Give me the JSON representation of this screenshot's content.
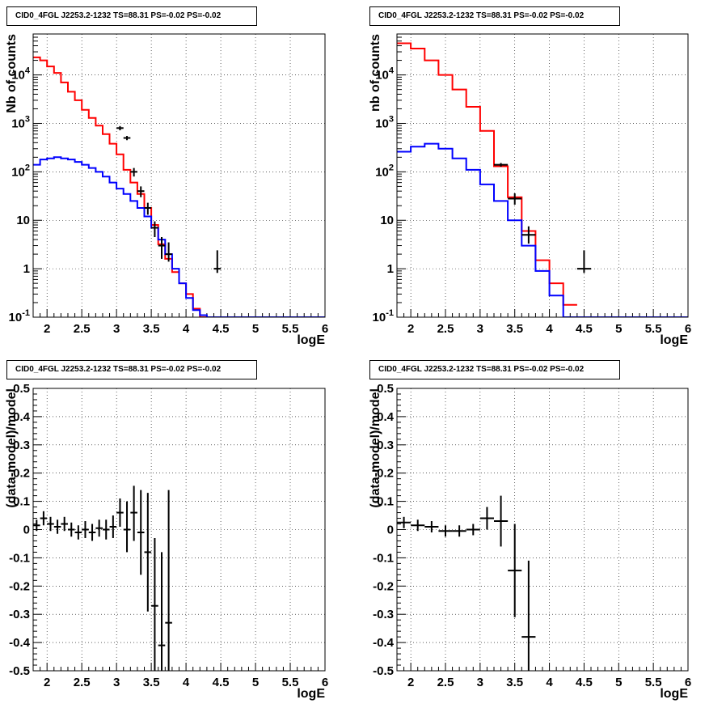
{
  "chart_data": [
    {
      "type": "histogram",
      "panel": "counts-fine",
      "title": "CID0_4FGL J2253.2-1232 TS=88.31 PS=-0.02 PS=-0.02",
      "xlabel": "logE",
      "ylabel": "Nb of counts",
      "xlim": [
        1.8,
        6.0
      ],
      "ylim": [
        0.1,
        70000
      ],
      "yscale": "log",
      "xticks": [
        "2",
        "2.5",
        "3",
        "3.5",
        "4",
        "4.5",
        "5",
        "5.5",
        "6"
      ],
      "yticks": [
        "10^-1",
        "1",
        "10",
        "10^2",
        "10^3",
        "10^4"
      ],
      "grid": true,
      "bin_width": 0.1,
      "series": [
        {
          "color": "#ff0000",
          "style": "step",
          "x": [
            1.85,
            1.95,
            2.05,
            2.15,
            2.25,
            2.35,
            2.45,
            2.55,
            2.65,
            2.75,
            2.85,
            2.95,
            3.05,
            3.15,
            3.25,
            3.35,
            3.45,
            3.55,
            3.65,
            3.75,
            3.85,
            3.95,
            4.05,
            4.15,
            4.25,
            4.35
          ],
          "values": [
            23000,
            20000,
            15000,
            11000,
            7000,
            4500,
            3000,
            1900,
            1300,
            900,
            600,
            380,
            230,
            110,
            60,
            35,
            18,
            8,
            3.2,
            1.6,
            0.85,
            0.5,
            0.3,
            0.15,
            0.1,
            0.1
          ]
        },
        {
          "color": "#0000ff",
          "style": "step",
          "x": [
            1.85,
            1.95,
            2.05,
            2.15,
            2.25,
            2.35,
            2.45,
            2.55,
            2.65,
            2.75,
            2.85,
            2.95,
            3.05,
            3.15,
            3.25,
            3.35,
            3.45,
            3.55,
            3.65,
            3.75,
            3.85,
            3.95,
            4.05,
            4.15,
            4.25,
            4.35,
            4.45,
            4.55,
            4.65,
            4.75,
            4.85,
            4.95,
            5.05,
            5.15,
            5.25,
            5.35,
            5.45,
            5.55,
            5.65,
            5.75,
            5.85,
            5.95
          ],
          "values": [
            140,
            180,
            190,
            200,
            190,
            180,
            160,
            140,
            120,
            100,
            80,
            60,
            45,
            35,
            25,
            18,
            12,
            7,
            4,
            2,
            1,
            0.5,
            0.25,
            0.14,
            0.11,
            0.1,
            0.1,
            0.1,
            0.1,
            0.1,
            0.1,
            0.1,
            0.1,
            0.1,
            0.1,
            0.1,
            0.1,
            0.1,
            0.1,
            0.1,
            0.1,
            0.1
          ]
        },
        {
          "color": "#000000",
          "style": "errorbar",
          "x": [
            3.05,
            3.15,
            3.25,
            3.35,
            3.45,
            3.55,
            3.65,
            3.75,
            4.45
          ],
          "values": [
            800,
            500,
            100,
            40,
            18,
            7,
            3,
            2,
            1
          ],
          "err_low": [
            720,
            450,
            80,
            30,
            13,
            4.5,
            1.6,
            1.4,
            0.82
          ],
          "err_high": [
            880,
            550,
            120,
            50,
            23,
            9.5,
            4.5,
            3.5,
            2.4
          ]
        }
      ]
    },
    {
      "type": "histogram",
      "panel": "counts-coarse",
      "title": "CID0_4FGL J2253.2-1232 TS=88.31 PS=-0.02 PS=-0.02",
      "xlabel": "logE",
      "ylabel": "nb of counts",
      "xlim": [
        1.8,
        6.0
      ],
      "ylim": [
        0.1,
        70000
      ],
      "yscale": "log",
      "xticks": [
        "2",
        "2.5",
        "3",
        "3.5",
        "4",
        "4.5",
        "5",
        "5.5",
        "6"
      ],
      "yticks": [
        "10^-1",
        "1",
        "10",
        "10^2",
        "10^3",
        "10^4"
      ],
      "grid": true,
      "bin_width": 0.2,
      "series": [
        {
          "color": "#ff0000",
          "style": "step",
          "x": [
            1.9,
            2.1,
            2.3,
            2.5,
            2.7,
            2.9,
            3.1,
            3.3,
            3.5,
            3.7,
            3.9,
            4.1,
            4.3
          ],
          "values": [
            45000,
            35000,
            20000,
            10000,
            5000,
            2200,
            700,
            130,
            30,
            6,
            1.5,
            0.5,
            0.18
          ]
        },
        {
          "color": "#0000ff",
          "style": "step",
          "x": [
            1.9,
            2.1,
            2.3,
            2.5,
            2.7,
            2.9,
            3.1,
            3.3,
            3.5,
            3.7,
            3.9,
            4.1,
            4.3,
            4.5,
            4.7,
            4.9,
            5.1,
            5.3,
            5.5,
            5.7,
            5.9
          ],
          "values": [
            260,
            330,
            380,
            300,
            190,
            110,
            55,
            25,
            10,
            3,
            0.9,
            0.28,
            0.1,
            0.1,
            0.1,
            0.1,
            0.1,
            0.1,
            0.1,
            0.1,
            0.1
          ]
        },
        {
          "color": "#000000",
          "style": "errorbar",
          "x": [
            3.3,
            3.5,
            3.7,
            4.5
          ],
          "values": [
            140,
            28,
            5,
            1
          ],
          "err_low": [
            128,
            21,
            3.3,
            0.82
          ],
          "err_high": [
            152,
            36,
            7.5,
            2.4
          ]
        }
      ]
    },
    {
      "type": "scatter",
      "panel": "residuals-fine",
      "title": "CID0_4FGL J2253.2-1232 TS=88.31 PS=-0.02 PS=-0.02",
      "xlabel": "logE",
      "ylabel": "(data-model)/model",
      "xlim": [
        1.8,
        6.0
      ],
      "ylim": [
        -0.5,
        0.5
      ],
      "xticks": [
        "2",
        "2.5",
        "3",
        "3.5",
        "4",
        "4.5",
        "5",
        "5.5",
        "6"
      ],
      "yticks": [
        "-0.5",
        "-0.4",
        "-0.3",
        "-0.2",
        "-0.1",
        "0",
        "0.1",
        "0.2",
        "0.3",
        "0.4",
        "0.5"
      ],
      "grid": true,
      "series": [
        {
          "color": "#000000",
          "style": "errorbar",
          "x": [
            1.85,
            1.95,
            2.05,
            2.15,
            2.25,
            2.35,
            2.45,
            2.55,
            2.65,
            2.75,
            2.85,
            2.95,
            3.05,
            3.15,
            3.25,
            3.35,
            3.45,
            3.55,
            3.65,
            3.75
          ],
          "x_err": 0.05,
          "values": [
            0.015,
            0.04,
            0.02,
            0.01,
            0.02,
            0.0,
            -0.01,
            0.0,
            -0.01,
            0.005,
            0.0,
            0.01,
            0.06,
            0.0,
            0.06,
            -0.01,
            -0.08,
            -0.27,
            -0.41,
            -0.33
          ],
          "err_low": [
            -0.005,
            0.015,
            -0.005,
            -0.015,
            -0.005,
            -0.025,
            -0.035,
            -0.03,
            -0.04,
            -0.025,
            -0.035,
            -0.03,
            0.01,
            -0.08,
            -0.04,
            -0.16,
            -0.29,
            -0.5,
            -0.5,
            -0.5
          ],
          "err_high": [
            0.035,
            0.065,
            0.045,
            0.035,
            0.045,
            0.025,
            0.015,
            0.03,
            0.02,
            0.035,
            0.035,
            0.05,
            0.11,
            0.1,
            0.155,
            0.14,
            0.13,
            -0.03,
            -0.08,
            0.14
          ]
        }
      ]
    },
    {
      "type": "scatter",
      "panel": "residuals-coarse",
      "title": "CID0_4FGL J2253.2-1232 TS=88.31 PS=-0.02 PS=-0.02",
      "xlabel": "logE",
      "ylabel": "(data-model)/model",
      "xlim": [
        1.8,
        6.0
      ],
      "ylim": [
        -0.5,
        0.5
      ],
      "xticks": [
        "2",
        "2.5",
        "3",
        "3.5",
        "4",
        "4.5",
        "5",
        "5.5",
        "6"
      ],
      "yticks": [
        "-0.5",
        "-0.4",
        "-0.3",
        "-0.2",
        "-0.1",
        "0",
        "0.1",
        "0.2",
        "0.3",
        "0.4",
        "0.5"
      ],
      "grid": true,
      "series": [
        {
          "color": "#000000",
          "style": "errorbar",
          "x": [
            1.9,
            2.1,
            2.3,
            2.5,
            2.7,
            2.9,
            3.1,
            3.3,
            3.5,
            3.7
          ],
          "x_err": 0.1,
          "values": [
            0.025,
            0.015,
            0.01,
            -0.005,
            -0.005,
            0.0,
            0.04,
            0.03,
            -0.145,
            -0.38
          ],
          "err_low": [
            0.005,
            -0.005,
            -0.01,
            -0.025,
            -0.025,
            -0.02,
            0.0,
            -0.06,
            -0.31,
            -0.5
          ],
          "err_high": [
            0.045,
            0.035,
            0.03,
            0.015,
            0.015,
            0.02,
            0.08,
            0.12,
            0.02,
            -0.11
          ]
        }
      ]
    }
  ]
}
